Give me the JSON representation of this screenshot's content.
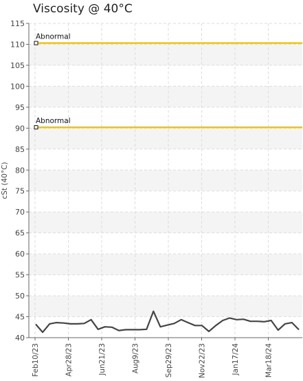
{
  "chart_data": {
    "type": "line",
    "title": "Viscosity @ 40°C",
    "xlabel": "",
    "ylabel": "cSt (40°C)",
    "ylim": [
      40,
      115
    ],
    "yticks": [
      40,
      45,
      50,
      55,
      60,
      65,
      70,
      75,
      80,
      85,
      90,
      95,
      100,
      105,
      110,
      115
    ],
    "grid": true,
    "xticks": [
      "Feb10/23",
      "Apr28/23",
      "Jun21/23",
      "Aug9/23",
      "Sep29/23",
      "Nov22/23",
      "Jan17/24",
      "Mar18/24"
    ],
    "thresholds": [
      {
        "label": "Abnormal",
        "value": 110.3,
        "color": "#f2c500"
      },
      {
        "label": "Abnormal",
        "value": 90.2,
        "color": "#f2c500"
      }
    ],
    "series": [
      {
        "color": "#444444",
        "values": [
          43.2,
          41.3,
          43.3,
          43.6,
          43.5,
          43.3,
          43.3,
          43.4,
          44.3,
          42.0,
          42.6,
          42.5,
          41.7,
          41.9,
          41.9,
          41.9,
          42.0,
          46.3,
          42.6,
          43.0,
          43.4,
          44.3,
          43.6,
          42.9,
          42.9,
          41.5,
          42.9,
          44.1,
          44.7,
          44.3,
          44.4,
          43.9,
          43.9,
          43.8,
          44.1,
          41.8,
          43.3,
          43.6,
          41.9
        ]
      }
    ]
  }
}
